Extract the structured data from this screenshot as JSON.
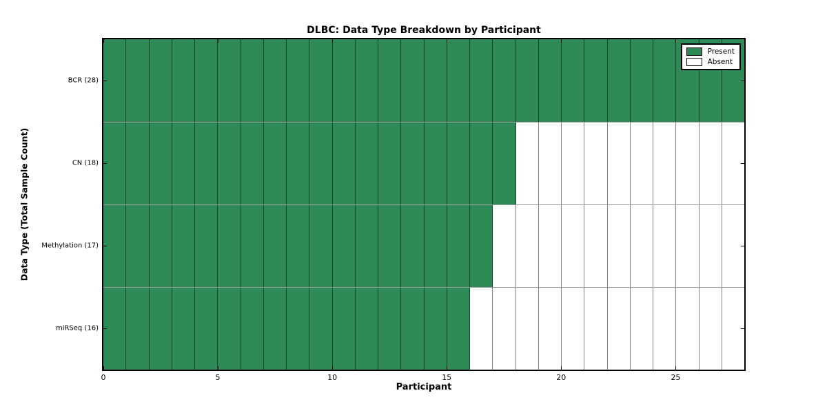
{
  "chart_data": {
    "type": "heatmap",
    "title": "DLBC: Data Type Breakdown by Participant",
    "xlabel": "Participant",
    "ylabel": "Data Type (Total Sample Count)",
    "x_ticks": [
      0,
      5,
      10,
      15,
      20,
      25
    ],
    "x_max": 28,
    "n_participants": 28,
    "rows": [
      {
        "label": "BCR (28)",
        "data_type": "BCR",
        "total_samples": 28,
        "present_count": 28
      },
      {
        "label": "CN (18)",
        "data_type": "CN",
        "total_samples": 18,
        "present_count": 18
      },
      {
        "label": "Methylation (17)",
        "data_type": "Methylation",
        "total_samples": 17,
        "present_count": 17
      },
      {
        "label": "miRSeq (16)",
        "data_type": "miRSeq",
        "total_samples": 16,
        "present_count": 16
      }
    ],
    "legend": [
      {
        "label": "Present",
        "color": "#2e8b57"
      },
      {
        "label": "Absent",
        "color": "#ffffff"
      }
    ],
    "colors": {
      "present": "#2e8b57",
      "absent": "#ffffff",
      "frame": "#000000"
    },
    "layout": {
      "legend_position": "upper right",
      "grid": "cell-edges"
    }
  }
}
